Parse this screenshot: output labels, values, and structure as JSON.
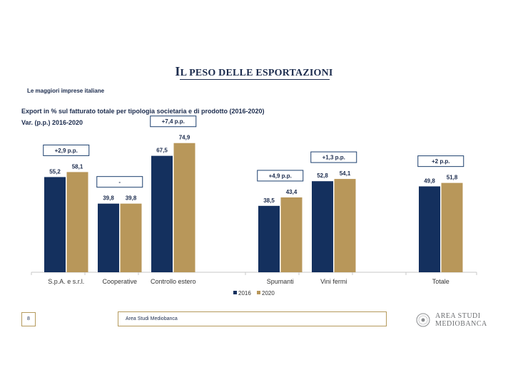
{
  "header": {
    "title_initial": "I",
    "title_rest": "L PESO DELLE ESPORTAZIONI",
    "subtitle": "Le maggiori imprese italiane",
    "chart_heading": "Export in % sul fatturato totale per tipologia societaria e di prodotto (2016-2020)",
    "var_heading": "Var. (p.p.) 2016-2020"
  },
  "colors": {
    "series_2016": "#14305e",
    "series_2020": "#b8975a",
    "callout_border": "#1b3f6e",
    "text": "#1b2b4d"
  },
  "chart_data": {
    "type": "bar",
    "categories": [
      "S.p.A. e s.r.l.",
      "Cooperative",
      "Controllo estero",
      "Spumanti",
      "Vini fermi",
      "Totale"
    ],
    "series": [
      {
        "name": "2016",
        "values": [
          55.2,
          39.8,
          67.5,
          38.5,
          52.8,
          49.8
        ],
        "labels": [
          "55,2",
          "39,8",
          "67,5",
          "38,5",
          "52,8",
          "49,8"
        ]
      },
      {
        "name": "2020",
        "values": [
          58.1,
          39.8,
          74.9,
          43.4,
          54.1,
          51.8
        ],
        "labels": [
          "58,1",
          "39,8",
          "74,9",
          "43,4",
          "54,1",
          "51,8"
        ]
      }
    ],
    "variations": [
      "+2,9 p.p.",
      "-",
      "+7,4 p.p.",
      "+4,9 p.p.",
      "+1,3 p.p.",
      "+2 p.p."
    ],
    "ylim": [
      0,
      80
    ],
    "title": "Export in % sul fatturato totale per tipologia societaria e di prodotto (2016-2020)",
    "xlabel": "",
    "ylabel": "",
    "legend": "bottom-center"
  },
  "footer": {
    "page_number": "8",
    "source": "Area Studi Mediobanca",
    "logo_line1": "AREA STUDI",
    "logo_line2": "MEDIOBANCA"
  }
}
